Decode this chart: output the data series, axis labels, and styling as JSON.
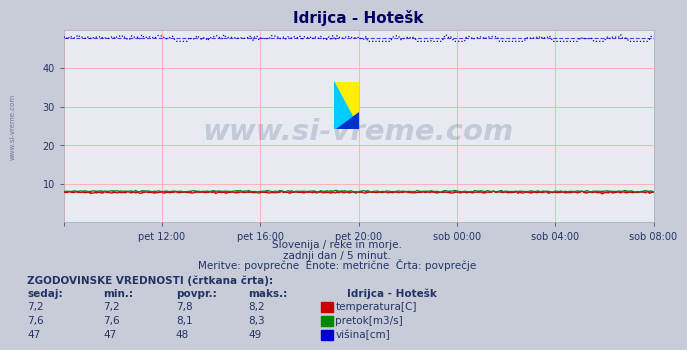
{
  "title": "Idrijca - Hotešk",
  "bg_color": "#c8ccd8",
  "plot_bg_color": "#e8eaf2",
  "grid_color": "#ffaaaa",
  "ylim": [
    0,
    50
  ],
  "yticks": [
    10,
    20,
    30,
    40
  ],
  "n_points": 288,
  "temp_value": 7.8,
  "temp_min": 7.2,
  "temp_max": 8.2,
  "pretok_value": 8.1,
  "pretok_min": 7.6,
  "pretok_max": 8.3,
  "visina_value": 48.0,
  "visina_min": 47.0,
  "visina_max": 49.0,
  "temp_color": "#cc0000",
  "pretok_color": "#008800",
  "visina_color": "#0000cc",
  "xtick_labels": [
    "pet 12:00",
    "pet 16:00",
    "pet 20:00",
    "sob 00:00",
    "sob 04:00",
    "sob 08:00"
  ],
  "subtitle1": "Slovenija / reke in morje.",
  "subtitle2": "zadnji dan / 5 minut.",
  "subtitle3": "Meritve: povprečne  Enote: metrične  Črta: povprečje",
  "table_header": "ZGODOVINSKE VREDNOSTI (črtkana črta):",
  "col_headers": [
    "sedaj:",
    "min.:",
    "povpr.:",
    "maks.:"
  ],
  "row1": [
    "7,2",
    "7,2",
    "7,8",
    "8,2"
  ],
  "row2": [
    "7,6",
    "7,6",
    "8,1",
    "8,3"
  ],
  "row3": [
    "47",
    "47",
    "48",
    "49"
  ],
  "legend_label1": "temperatura[C]",
  "legend_label2": "pretok[m3/s]",
  "legend_label3": "višina[cm]",
  "station_label": "Idrijca - Hotešk",
  "watermark_text": "www.si-vreme.com",
  "watermark_color": "#1a3a6e",
  "watermark_alpha": 0.18,
  "side_text": "www.si-vreme.com",
  "logo_yellow": "#ffee00",
  "logo_cyan": "#00ccff",
  "logo_blue": "#0033cc"
}
